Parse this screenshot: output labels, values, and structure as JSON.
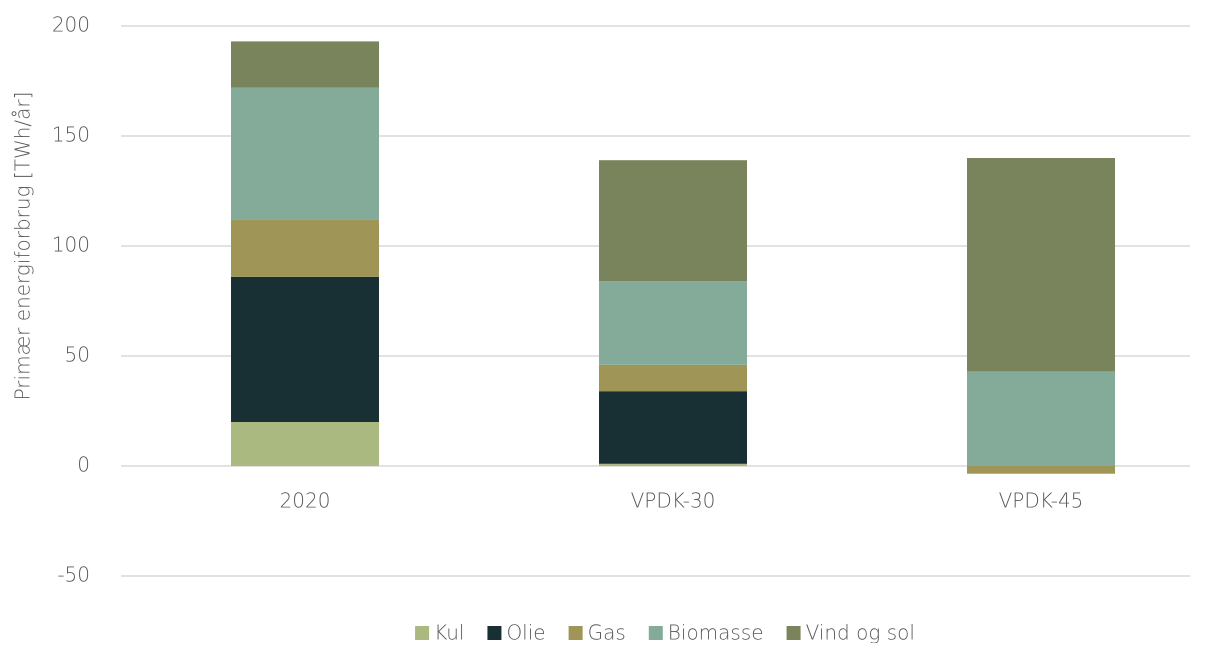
{
  "chart_data": {
    "type": "stacked_bar",
    "categories": [
      "2020",
      "VPDK-30",
      "VPDK-45"
    ],
    "series": [
      {
        "name": "Kul",
        "color": "#a9b97f",
        "values": [
          20,
          1,
          0
        ]
      },
      {
        "name": "Olie",
        "color": "#183033",
        "values": [
          66,
          33,
          0
        ]
      },
      {
        "name": "Gas",
        "color": "#9e9556",
        "values": [
          26,
          12,
          -3.5
        ]
      },
      {
        "name": "Biomasse",
        "color": "#84ab9a",
        "values": [
          60,
          38,
          43
        ]
      },
      {
        "name": "Vind og sol",
        "color": "#7a845c",
        "values": [
          21,
          55,
          97
        ]
      }
    ],
    "y_label": "Primær energiforbrug [TWh/år]",
    "ylim": [
      -50,
      200
    ],
    "yticks": [
      -50,
      0,
      50,
      100,
      150,
      200
    ],
    "grid": true,
    "legend": "bottom"
  }
}
